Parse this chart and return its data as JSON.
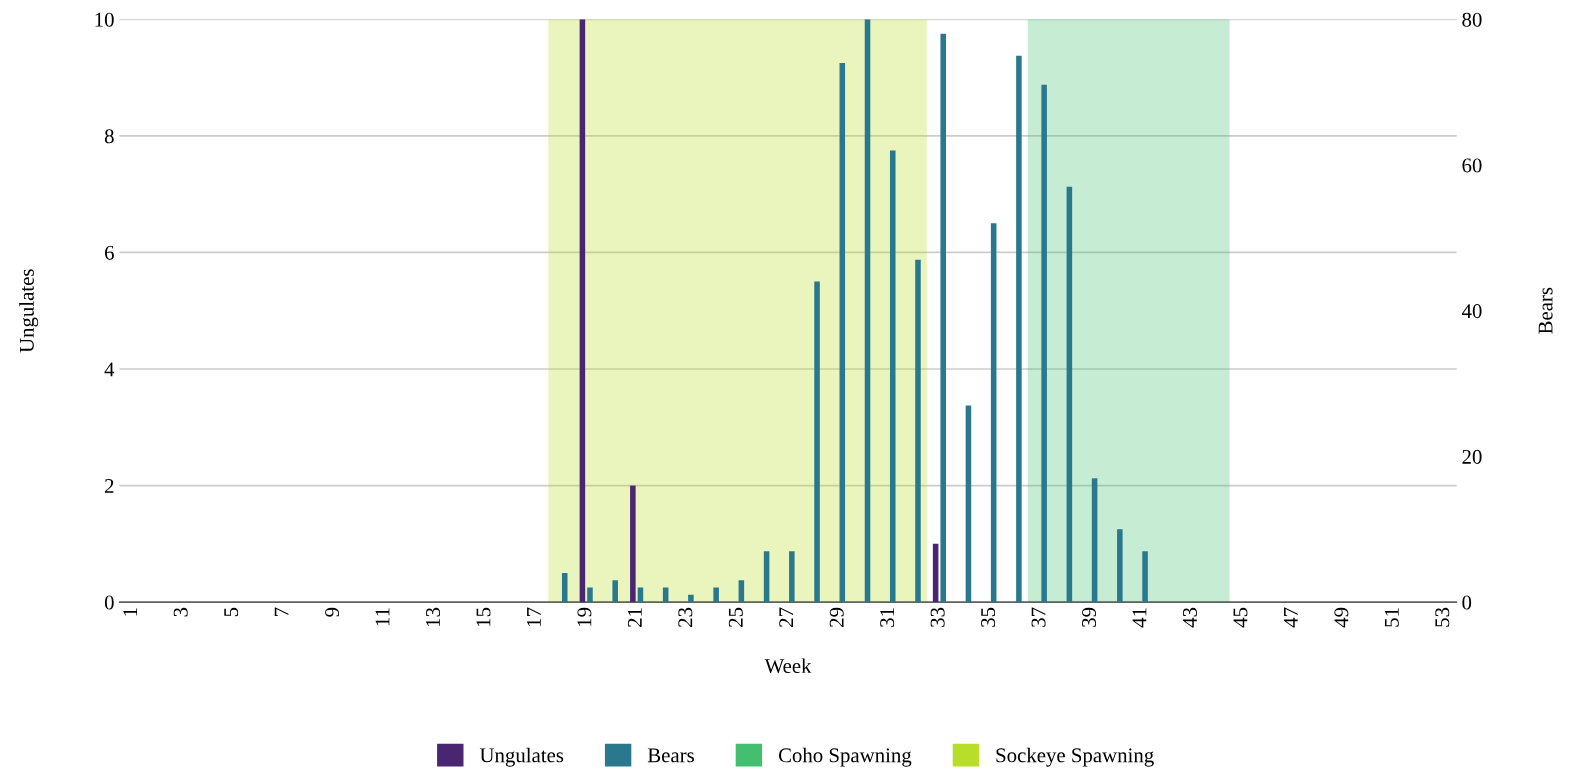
{
  "chart_data": {
    "type": "bar",
    "xlabel": "Week",
    "ylabel": "Ungulates",
    "y2label": "Bears",
    "xlim": [
      0.5,
      53.5
    ],
    "xticks": [
      1,
      3,
      5,
      7,
      9,
      11,
      13,
      15,
      17,
      19,
      21,
      23,
      25,
      27,
      29,
      31,
      33,
      35,
      37,
      39,
      41,
      43,
      45,
      47,
      49,
      51,
      53
    ],
    "ylim": [
      0,
      10
    ],
    "yticks": [
      0,
      2,
      4,
      6,
      8,
      10
    ],
    "y2lim": [
      0,
      80
    ],
    "y2ticks": [
      0,
      20,
      40,
      60,
      80
    ],
    "series": [
      {
        "name": "Ungulates",
        "color": "#4a2672",
        "x": [
          19,
          21,
          33
        ],
        "values": [
          10,
          2,
          1
        ]
      },
      {
        "name": "Bears",
        "color": "#2a788e",
        "axis": "y2",
        "x": [
          18,
          19,
          20,
          21,
          22,
          23,
          24,
          25,
          26,
          27,
          28,
          29,
          30,
          31,
          32,
          33,
          34,
          35,
          36,
          37,
          38,
          39,
          40,
          41
        ],
        "values": [
          4,
          2,
          3,
          2,
          2,
          1,
          2,
          3,
          7,
          7,
          44,
          74,
          80,
          62,
          47,
          78,
          27,
          52,
          75,
          71,
          57,
          17,
          10,
          7
        ]
      }
    ],
    "bands": [
      {
        "axis": "x",
        "from": 36.5,
        "to": 44.5,
        "label": "Coho Spawning",
        "color": "#44bf70"
      },
      {
        "axis": "x",
        "from": 17.5,
        "to": 32.5,
        "label": "Sockeye Spawning",
        "color": "#b8de29"
      }
    ],
    "grid": "y",
    "legend": "bottom"
  }
}
